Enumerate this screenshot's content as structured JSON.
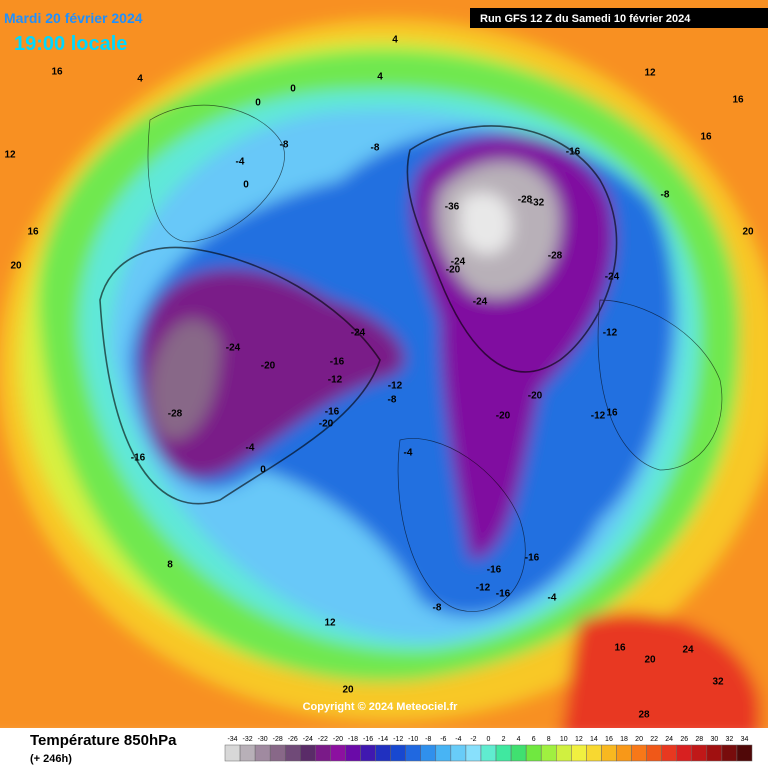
{
  "header": {
    "date": "Mardi 20 février 2024",
    "time": "19:00 locale",
    "run": "Run GFS 12 Z du Samedi 10 février 2024"
  },
  "copyright": "Copyright © 2024 Meteociel.fr",
  "legend": {
    "title": "Température 850hPa",
    "subtitle": "(+ 246h)",
    "values": [
      -34,
      -32,
      -30,
      -28,
      -26,
      -24,
      -22,
      -20,
      -18,
      -16,
      -14,
      -12,
      -10,
      -8,
      -6,
      -4,
      -2,
      0,
      2,
      4,
      6,
      8,
      10,
      12,
      14,
      16,
      18,
      20,
      22,
      24,
      26,
      28,
      30,
      32,
      34
    ],
    "colors": [
      "#d8d8d8",
      "#b8b0b8",
      "#a08aa0",
      "#886888",
      "#704a78",
      "#5a2c68",
      "#7a1a88",
      "#8c10a0",
      "#6a0aa8",
      "#4018b0",
      "#2030c0",
      "#1848d0",
      "#2068e0",
      "#3090ec",
      "#48b4f4",
      "#68ccf8",
      "#88e0fc",
      "#60ecd0",
      "#40e8a0",
      "#40e070",
      "#70e840",
      "#a0f040",
      "#d0f040",
      "#f0f040",
      "#f8d830",
      "#f8b820",
      "#f89818",
      "#f87818",
      "#f05818",
      "#e83820",
      "#d82020",
      "#c01818",
      "#a01010",
      "#780c0c",
      "#500808"
    ]
  },
  "map_labels": [
    -16,
    -28,
    -32,
    -36,
    -24,
    -20,
    -28,
    -24,
    -24,
    -24,
    -28,
    -16,
    -20,
    -16,
    -12,
    -12,
    -8,
    -20,
    -20,
    -12,
    16,
    -16,
    -20,
    -16,
    -16,
    -12,
    -16,
    -8,
    -4,
    -8,
    -8,
    -4,
    0,
    0,
    0,
    4,
    4,
    4,
    16,
    12,
    16,
    20,
    16,
    12,
    16,
    20,
    8,
    12,
    20,
    24,
    28,
    32,
    16,
    20,
    -4,
    -4,
    0,
    -8,
    -24,
    -12
  ]
}
